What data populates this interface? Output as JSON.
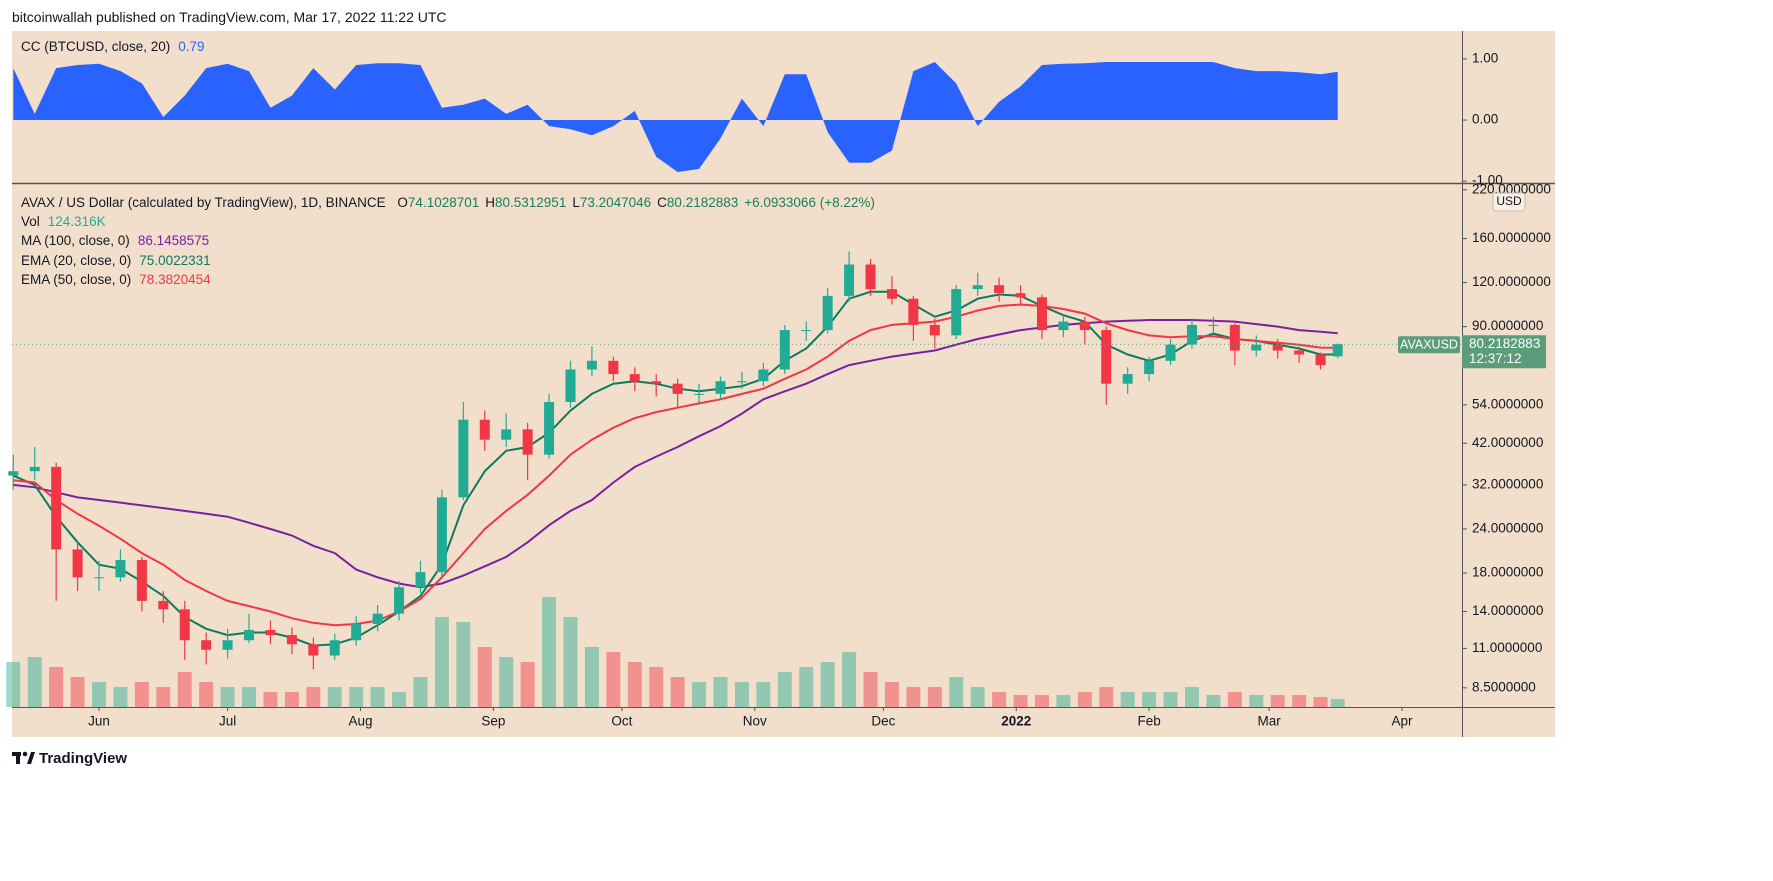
{
  "header": {
    "text": "bitcoinwallah published on TradingView.com, Mar 17, 2022 11:22 UTC"
  },
  "footer": {
    "brand": "TradingView"
  },
  "chart_data": [
    {
      "type": "area",
      "title": "CC (BTCUSD, close, 20)",
      "legend_value": "0.79",
      "color": "#2962ff",
      "x": [
        0,
        5,
        10,
        15,
        20,
        25,
        30,
        35,
        40,
        45,
        50,
        55,
        60,
        65,
        70,
        75,
        80,
        85,
        90,
        95,
        100,
        105,
        110,
        115,
        120,
        125,
        130,
        135,
        140,
        145,
        150,
        155,
        160,
        165,
        170,
        175,
        180,
        185,
        190,
        195,
        200,
        205,
        210,
        215,
        220,
        225,
        230,
        235,
        240,
        245,
        250,
        255,
        260,
        265,
        270,
        275,
        280,
        285,
        290,
        295,
        300,
        305,
        309
      ],
      "values": [
        0.85,
        0.1,
        0.85,
        0.9,
        0.92,
        0.8,
        0.6,
        0.05,
        0.4,
        0.85,
        0.92,
        0.8,
        0.2,
        0.4,
        0.85,
        0.5,
        0.9,
        0.93,
        0.93,
        0.9,
        0.2,
        0.25,
        0.35,
        0.1,
        0.25,
        -0.1,
        -0.15,
        -0.25,
        -0.1,
        0.15,
        -0.6,
        -0.85,
        -0.8,
        -0.3,
        0.35,
        -0.1,
        0.75,
        0.75,
        -0.2,
        -0.7,
        -0.7,
        -0.5,
        0.8,
        0.95,
        0.6,
        -0.1,
        0.3,
        0.55,
        0.9,
        0.92,
        0.93,
        0.95,
        0.95,
        0.95,
        0.95,
        0.95,
        0.95,
        0.85,
        0.8,
        0.8,
        0.78,
        0.75,
        0.79
      ],
      "xlim": [
        0,
        338
      ],
      "ylim": [
        -1.03,
        1.44
      ],
      "yticks": [
        {
          "value": 1,
          "label": "1.00"
        },
        {
          "value": 0,
          "label": "0.00"
        },
        {
          "value": -1,
          "label": "-1.00"
        }
      ]
    },
    {
      "type": "candlestick",
      "title": "AVAX / US Dollar (calculated by TradingView), 1D, BINANCE",
      "ohlc_legend": [
        {
          "label": "O",
          "value": "74.1028701"
        },
        {
          "label": "H",
          "value": "80.5312951"
        },
        {
          "label": "L",
          "value": "73.2047046"
        },
        {
          "label": "C",
          "value": "80.2182883"
        }
      ],
      "change": "+6.0933066 (+8.22%)",
      "up_color": "#22ab94",
      "down_color": "#f23645",
      "x": [
        0,
        5,
        10,
        15,
        20,
        25,
        30,
        35,
        40,
        45,
        50,
        55,
        60,
        65,
        70,
        75,
        80,
        85,
        90,
        95,
        100,
        105,
        110,
        115,
        120,
        125,
        130,
        135,
        140,
        145,
        150,
        155,
        160,
        165,
        170,
        175,
        180,
        185,
        190,
        195,
        200,
        205,
        210,
        215,
        220,
        225,
        230,
        235,
        240,
        245,
        250,
        255,
        260,
        265,
        270,
        275,
        280,
        285,
        290,
        295,
        300,
        305,
        309
      ],
      "open": [
        34,
        35,
        36,
        21,
        17.5,
        17.5,
        19.6,
        15,
        14.2,
        11.6,
        10.9,
        11.6,
        12.4,
        12,
        11.3,
        10.5,
        11.6,
        12.9,
        13.8,
        16.4,
        18.1,
        29.5,
        49,
        43,
        46,
        39,
        55,
        68,
        72,
        66,
        63,
        62,
        58,
        58,
        63,
        63,
        68,
        88,
        88,
        110,
        135,
        115,
        108,
        91,
        85,
        115,
        118,
        112,
        109,
        88,
        93,
        88,
        62,
        66,
        72,
        80,
        91,
        91,
        77,
        80,
        77,
        75,
        74.1028701
      ],
      "high": [
        39,
        41,
        37,
        22,
        19.5,
        21,
        20,
        16,
        15,
        12.2,
        12.5,
        13.8,
        13.2,
        12.6,
        11.8,
        12.1,
        13.6,
        14.6,
        17.1,
        19.5,
        31,
        55,
        52,
        51,
        48,
        58,
        72,
        79,
        74,
        69,
        66,
        64,
        62,
        65,
        67,
        71,
        91,
        93,
        116,
        147,
        140,
        125,
        110,
        95,
        118,
        128,
        124,
        118,
        111,
        97,
        96,
        90,
        69,
        74,
        83,
        95,
        96,
        92,
        85,
        83,
        79,
        76,
        80.5312951
      ],
      "low": [
        31,
        33,
        15,
        16,
        16,
        17,
        14,
        13,
        10.2,
        9.9,
        10.3,
        11.4,
        11.3,
        10.6,
        9.6,
        10.2,
        11.2,
        12.3,
        13.2,
        15.8,
        17.5,
        29,
        40,
        41,
        33,
        38,
        53,
        65,
        63,
        59,
        57,
        53,
        54,
        56,
        60,
        61,
        66,
        82,
        86,
        106,
        110,
        104,
        82,
        78,
        83,
        110,
        106,
        103,
        83,
        84,
        80,
        54,
        58,
        63,
        70,
        78,
        86,
        70,
        74,
        73,
        71,
        68,
        73.2047046
      ],
      "close": [
        35,
        36,
        21,
        17.5,
        17.5,
        19.6,
        15,
        14.2,
        11.6,
        10.9,
        11.6,
        12.4,
        12,
        11.3,
        10.5,
        11.6,
        12.9,
        13.8,
        16.4,
        18.1,
        29.5,
        49,
        43,
        46,
        39,
        55,
        68,
        72,
        66,
        63,
        62,
        58,
        58,
        63,
        63,
        68,
        88,
        88,
        110,
        135,
        115,
        108,
        91,
        85,
        115,
        118,
        112,
        109,
        88,
        93,
        88,
        62,
        66,
        72,
        80,
        91,
        91,
        77,
        80,
        77,
        75,
        70,
        80.2182883
      ],
      "volume": {
        "name": "Vol",
        "legend_value": "124.316K",
        "axis": "y2",
        "values": [
          687000,
          763000,
          611000,
          458000,
          382000,
          305000,
          382000,
          305000,
          534000,
          382000,
          305000,
          305000,
          229000,
          229000,
          305000,
          305000,
          305000,
          305000,
          229000,
          458000,
          1374000,
          1298000,
          916000,
          763000,
          687000,
          1679000,
          1374000,
          916000,
          840000,
          687000,
          611000,
          458000,
          382000,
          458000,
          382000,
          382000,
          534000,
          611000,
          687000,
          840000,
          534000,
          382000,
          305000,
          305000,
          458000,
          305000,
          229000,
          183000,
          183000,
          183000,
          229000,
          305000,
          229000,
          229000,
          229000,
          305000,
          183000,
          229000,
          183000,
          183000,
          183000,
          153000,
          124316
        ]
      },
      "lines": [
        {
          "name": "MA (100, close, 0)",
          "legend_value": "86.1458575",
          "color": "#7b1fa2",
          "values": [
            32,
            31.5,
            30.5,
            29.5,
            29,
            28.5,
            28,
            27.5,
            27,
            26.5,
            26,
            25,
            24,
            23,
            21.5,
            20.5,
            18.4,
            17.5,
            16.8,
            16.4,
            16.8,
            17.7,
            18.8,
            20,
            22,
            24.6,
            27,
            29,
            32.5,
            36,
            38.5,
            41,
            44,
            47,
            51,
            56,
            59,
            62,
            66,
            70,
            72,
            74,
            75.5,
            77,
            80,
            83,
            85.5,
            88,
            89.5,
            91,
            92,
            93,
            93.5,
            94,
            94,
            94,
            93.5,
            93,
            91.5,
            90,
            88,
            87,
            86.1458575
          ]
        },
        {
          "name": "EMA (20, close, 0)",
          "legend_value": "75.0022331",
          "color": "#0b7a5e",
          "values": [
            34,
            32,
            26,
            22,
            19,
            18.5,
            17,
            15.5,
            13.5,
            12.5,
            12,
            12.2,
            12.2,
            11.8,
            11.2,
            11.3,
            11.8,
            12.8,
            14,
            15.5,
            19,
            28,
            35,
            40,
            41,
            45,
            52,
            58,
            62,
            63,
            62,
            60,
            59,
            60,
            61,
            64,
            72,
            78,
            90,
            108,
            113,
            113,
            104,
            96,
            100,
            108,
            111,
            110,
            103,
            97,
            93,
            80,
            75,
            72,
            75,
            82,
            86,
            83,
            82,
            80,
            78,
            75,
            75.0022331
          ]
        },
        {
          "name": "EMA (50, close, 0)",
          "legend_value": "78.3820454",
          "color": "#f23645",
          "values": [
            33,
            32.5,
            29,
            26.5,
            24.5,
            22.5,
            20.5,
            19,
            17.2,
            16,
            15,
            14.5,
            14,
            13.4,
            13,
            12.8,
            12.9,
            13.2,
            14,
            15.2,
            17.5,
            20.5,
            24,
            27,
            30,
            34,
            39,
            43,
            46.5,
            49.5,
            51.5,
            53,
            54.5,
            56,
            58,
            60,
            64,
            68,
            74,
            82,
            88,
            91,
            92,
            93,
            96,
            100,
            103,
            104,
            103,
            101,
            98,
            92,
            88,
            85,
            84,
            84.5,
            84.5,
            83,
            82,
            81,
            80,
            78.5,
            78.3820454
          ]
        }
      ],
      "last_price": {
        "symbol": "AVAXUSD",
        "countdown": "12:37:12",
        "currency": "USD",
        "color": "#5b9c7a"
      },
      "log_scale": true,
      "xlim": [
        0,
        338
      ],
      "xticks": [
        {
          "value": 20,
          "label": "Jun"
        },
        {
          "value": 50,
          "label": "Jul"
        },
        {
          "value": 81,
          "label": "Aug"
        },
        {
          "value": 112,
          "label": "Sep"
        },
        {
          "value": 142,
          "label": "Oct"
        },
        {
          "value": 173,
          "label": "Nov"
        },
        {
          "value": 203,
          "label": "Dec"
        },
        {
          "value": 234,
          "label": "2022"
        },
        {
          "value": 265,
          "label": "Feb"
        },
        {
          "value": 293,
          "label": "Mar"
        },
        {
          "value": 324,
          "label": "Apr"
        }
      ],
      "ylim": [
        7.5,
        230
      ],
      "yticks": [
        {
          "value": 8.5,
          "label": "8.5000000"
        },
        {
          "value": 11,
          "label": "11.0000000"
        },
        {
          "value": 14,
          "label": "14.0000000"
        },
        {
          "value": 18,
          "label": "18.0000000"
        },
        {
          "value": 24,
          "label": "24.0000000"
        },
        {
          "value": 32,
          "label": "32.0000000"
        },
        {
          "value": 42,
          "label": "42.0000000"
        },
        {
          "value": 54,
          "label": "54.0000000"
        },
        {
          "value": 90,
          "label": "90.0000000"
        },
        {
          "value": 120,
          "label": "120.0000000"
        },
        {
          "value": 160,
          "label": "160.0000000"
        },
        {
          "value": 220,
          "label": "220.0000000"
        }
      ],
      "y2lim": [
        0,
        8000000
      ]
    }
  ]
}
